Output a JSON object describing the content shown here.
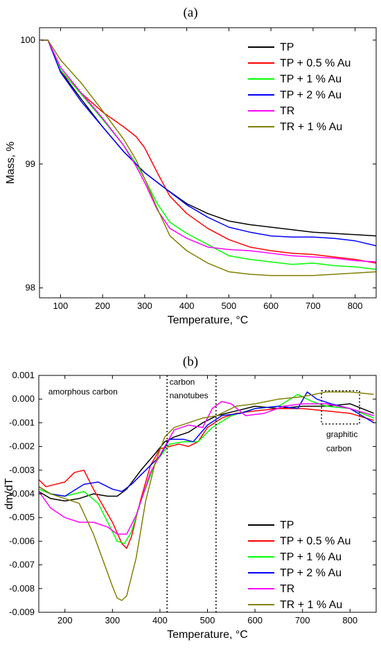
{
  "chart_data": [
    {
      "panel_label": "(a)",
      "type": "line",
      "xlabel": "Temperature, °C",
      "ylabel": "Mass, %",
      "xlim": [
        50,
        850
      ],
      "ylim": [
        97.92,
        100.1
      ],
      "xticks": [
        100,
        200,
        300,
        400,
        500,
        600,
        700,
        800
      ],
      "yticks": [
        98,
        99,
        100
      ],
      "legend_position": "top-right",
      "series": [
        {
          "name": "TP",
          "color": "#000000",
          "x": [
            55,
            70,
            100,
            150,
            200,
            250,
            300,
            350,
            400,
            450,
            500,
            550,
            600,
            650,
            700,
            750,
            800,
            850
          ],
          "y": [
            100,
            100,
            99.75,
            99.52,
            99.3,
            99.1,
            98.93,
            98.8,
            98.68,
            98.6,
            98.54,
            98.51,
            98.49,
            98.47,
            98.45,
            98.44,
            98.43,
            98.42
          ]
        },
        {
          "name": "TP + 0.5 % Au",
          "color": "#ff0000",
          "x": [
            55,
            70,
            100,
            150,
            200,
            250,
            280,
            300,
            330,
            360,
            400,
            450,
            500,
            550,
            600,
            650,
            700,
            750,
            800,
            850
          ],
          "y": [
            100,
            100,
            99.75,
            99.57,
            99.42,
            99.3,
            99.22,
            99.13,
            98.93,
            98.74,
            98.6,
            98.48,
            98.39,
            98.33,
            98.3,
            98.28,
            98.27,
            98.25,
            98.23,
            98.2
          ]
        },
        {
          "name": "TP + 1 % Au",
          "color": "#00ff00",
          "x": [
            55,
            70,
            100,
            150,
            200,
            250,
            280,
            300,
            330,
            360,
            400,
            450,
            500,
            550,
            600,
            650,
            700,
            750,
            800,
            850
          ],
          "y": [
            100,
            100,
            99.76,
            99.56,
            99.36,
            99.15,
            99.0,
            98.88,
            98.68,
            98.53,
            98.44,
            98.35,
            98.26,
            98.23,
            98.21,
            98.19,
            98.2,
            98.18,
            98.17,
            98.15
          ]
        },
        {
          "name": "TP + 2 % Au",
          "color": "#0000ff",
          "x": [
            55,
            70,
            100,
            150,
            200,
            250,
            300,
            350,
            400,
            450,
            500,
            550,
            600,
            650,
            700,
            750,
            800,
            850
          ],
          "y": [
            100,
            100,
            99.74,
            99.5,
            99.3,
            99.1,
            98.93,
            98.8,
            98.67,
            98.57,
            98.49,
            98.45,
            98.42,
            98.41,
            98.41,
            98.4,
            98.38,
            98.34
          ]
        },
        {
          "name": "TR",
          "color": "#ff00ff",
          "x": [
            55,
            70,
            100,
            150,
            200,
            250,
            280,
            300,
            330,
            360,
            400,
            450,
            500,
            550,
            600,
            650,
            700,
            750,
            800,
            850
          ],
          "y": [
            100,
            100,
            99.78,
            99.57,
            99.37,
            99.15,
            98.98,
            98.85,
            98.63,
            98.48,
            98.4,
            98.33,
            98.31,
            98.3,
            98.28,
            98.26,
            98.25,
            98.24,
            98.22,
            98.21
          ]
        },
        {
          "name": "TR + 1 % Au",
          "color": "#808000",
          "x": [
            55,
            70,
            100,
            150,
            200,
            250,
            280,
            300,
            330,
            360,
            400,
            450,
            500,
            550,
            600,
            650,
            700,
            750,
            800,
            850
          ],
          "y": [
            100,
            100,
            99.84,
            99.65,
            99.43,
            99.2,
            99.03,
            98.88,
            98.64,
            98.42,
            98.3,
            98.2,
            98.13,
            98.11,
            98.1,
            98.1,
            98.1,
            98.11,
            98.12,
            98.13
          ]
        }
      ]
    },
    {
      "panel_label": "(b)",
      "type": "line",
      "xlabel": "Temperature, °C",
      "ylabel": "dm/dT",
      "xlim": [
        145,
        855
      ],
      "ylim": [
        -0.009,
        0.001
      ],
      "xticks": [
        200,
        300,
        400,
        500,
        600,
        700,
        800
      ],
      "yticks": [
        -0.009,
        -0.008,
        -0.007,
        -0.006,
        -0.005,
        -0.004,
        -0.003,
        -0.002,
        -0.001,
        0.0,
        0.001
      ],
      "ytick_labels": [
        "-0.009",
        "-0.008",
        "-0.007",
        "-0.006",
        "-0.005",
        "-0.004",
        "-0.003",
        "-0.002",
        "-0.001",
        "0.000",
        "0.001"
      ],
      "legend_position": "bottom-right",
      "vlines": [
        415,
        518
      ],
      "box": {
        "x": [
          740,
          820
        ],
        "y": [
          -0.00105,
          0.00035
        ]
      },
      "annotations": [
        {
          "text": "amorphous carbon",
          "x": 165,
          "y": 0.0002
        },
        {
          "text": "carbon",
          "x": 420,
          "y": 0.0006
        },
        {
          "text": "nanotubes",
          "x": 420,
          "y": 3e-05
        },
        {
          "text": "graphitic",
          "x": 750,
          "y": -0.0016
        },
        {
          "text": "carbon",
          "x": 750,
          "y": -0.0022
        }
      ],
      "series": [
        {
          "name": "TP",
          "color": "#000000",
          "x": [
            145,
            170,
            200,
            230,
            260,
            290,
            310,
            330,
            360,
            390,
            410,
            430,
            460,
            490,
            520,
            560,
            600,
            650,
            700,
            750,
            800,
            850
          ],
          "y": [
            -0.0039,
            -0.0042,
            -0.0043,
            -0.0042,
            -0.004,
            -0.0041,
            -0.0041,
            -0.0038,
            -0.003,
            -0.0023,
            -0.0018,
            -0.0016,
            -0.0014,
            -0.001,
            -0.0007,
            -0.0005,
            -0.0003,
            -0.0004,
            -0.0003,
            -0.0003,
            -0.0002,
            -0.0006
          ]
        },
        {
          "name": "TP + 0.5 % Au",
          "color": "#ff0000",
          "x": [
            145,
            160,
            180,
            200,
            220,
            240,
            260,
            280,
            300,
            320,
            330,
            340,
            360,
            380,
            400,
            420,
            440,
            460,
            480,
            500,
            530,
            560,
            600,
            650,
            700,
            750,
            800,
            850
          ],
          "y": [
            -0.0034,
            -0.0037,
            -0.0036,
            -0.0035,
            -0.0031,
            -0.003,
            -0.0038,
            -0.0045,
            -0.0052,
            -0.0061,
            -0.0063,
            -0.0058,
            -0.0042,
            -0.0028,
            -0.0021,
            -0.002,
            -0.0019,
            -0.002,
            -0.0018,
            -0.0012,
            -0.0008,
            -0.0006,
            -0.0005,
            -0.0004,
            -0.0004,
            -0.0005,
            -0.0006,
            -0.0009
          ]
        },
        {
          "name": "TP + 1 % Au",
          "color": "#00ff00",
          "x": [
            145,
            170,
            200,
            240,
            270,
            290,
            310,
            325,
            340,
            360,
            390,
            420,
            450,
            480,
            510,
            550,
            600,
            650,
            690,
            720,
            750,
            800,
            850
          ],
          "y": [
            -0.0038,
            -0.004,
            -0.0041,
            -0.0039,
            -0.0044,
            -0.0052,
            -0.006,
            -0.0061,
            -0.0056,
            -0.0043,
            -0.0027,
            -0.0019,
            -0.0018,
            -0.0018,
            -0.0012,
            -0.0007,
            -0.0004,
            -0.0003,
            0.0002,
            -0.0001,
            -0.0003,
            -0.0004,
            -0.0008
          ]
        },
        {
          "name": "TP + 2 % Au",
          "color": "#0000ff",
          "x": [
            145,
            170,
            200,
            240,
            270,
            300,
            320,
            340,
            370,
            400,
            420,
            450,
            470,
            500,
            530,
            570,
            600,
            650,
            690,
            710,
            730,
            760,
            800,
            850
          ],
          "y": [
            -0.0037,
            -0.004,
            -0.0041,
            -0.0036,
            -0.0035,
            -0.0038,
            -0.0039,
            -0.0036,
            -0.003,
            -0.0024,
            -0.0017,
            -0.0017,
            -0.0018,
            -0.0011,
            -0.0007,
            -0.0006,
            -0.0004,
            -0.0003,
            -0.0004,
            0.0003,
            0.0,
            -0.0002,
            -0.0004,
            -0.001
          ]
        },
        {
          "name": "TR",
          "color": "#ff00ff",
          "x": [
            145,
            170,
            200,
            230,
            260,
            290,
            310,
            330,
            350,
            380,
            410,
            430,
            460,
            490,
            510,
            530,
            550,
            580,
            620,
            660,
            700,
            750,
            800,
            850
          ],
          "y": [
            -0.0039,
            -0.0046,
            -0.005,
            -0.0052,
            -0.0052,
            -0.0054,
            -0.0057,
            -0.0057,
            -0.0049,
            -0.0031,
            -0.002,
            -0.0013,
            -0.0011,
            -0.0012,
            -0.0004,
            -0.0001,
            -0.0002,
            -0.0007,
            -0.0006,
            -0.0003,
            -0.0002,
            -0.0002,
            -0.0004,
            -0.0007
          ]
        },
        {
          "name": "TR + 1 % Au",
          "color": "#808000",
          "x": [
            145,
            170,
            200,
            230,
            260,
            280,
            300,
            310,
            320,
            330,
            350,
            370,
            390,
            410,
            430,
            460,
            490,
            520,
            560,
            600,
            650,
            700,
            750,
            800,
            850
          ],
          "y": [
            -0.0037,
            -0.004,
            -0.0042,
            -0.0044,
            -0.0057,
            -0.0068,
            -0.0079,
            -0.0084,
            -0.0085,
            -0.0083,
            -0.0067,
            -0.0043,
            -0.0027,
            -0.0016,
            -0.0012,
            -0.001,
            -0.0008,
            -0.0007,
            -0.0003,
            -0.0002,
            0.0,
            0.0001,
            0.0003,
            0.0003,
            0.0002
          ]
        }
      ]
    }
  ]
}
